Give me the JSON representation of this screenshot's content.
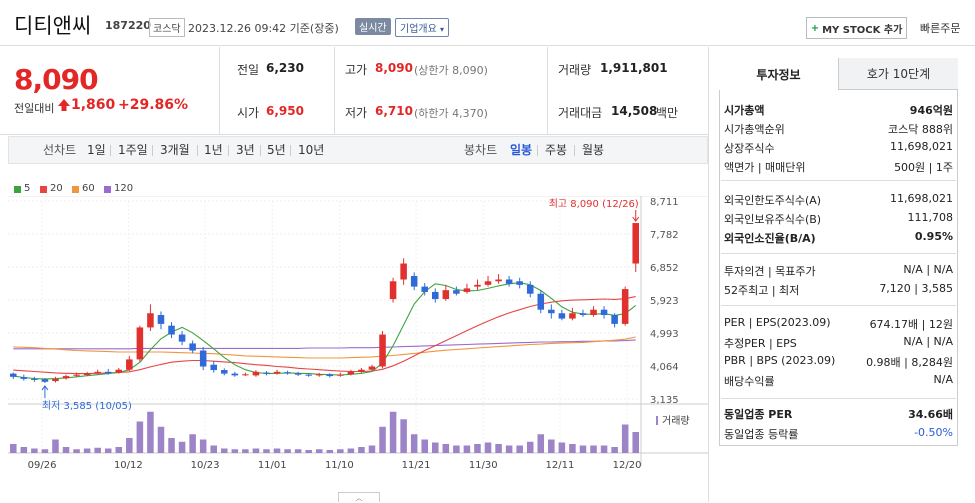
{
  "header": {
    "name": "디티앤씨",
    "code": "187220",
    "market": "코스닥",
    "datetime": "2023.12.26 09:42 기준(장중)",
    "realtime": "실시간",
    "company_overview": "기업개요",
    "mystock_label": "MY STOCK 추가",
    "quick_order": "빠른주문"
  },
  "price": {
    "current": "8,090",
    "change_label": "전일대비",
    "change": "1,860",
    "change_pct": "+29.86%",
    "prev_close_label": "전일",
    "prev_close": "6,230",
    "open_label": "시가",
    "open": "6,950",
    "high_label": "고가",
    "high": "8,090",
    "upper_limit": "(상한가 8,090)",
    "low_label": "저가",
    "low": "6,710",
    "lower_limit": "(하한가 4,370)",
    "volume_label": "거래량",
    "volume": "1,911,801",
    "amount_label": "거래대금",
    "amount": "14,508",
    "amount_unit": "백만"
  },
  "range": {
    "prefix": "선차트",
    "options": [
      "1일",
      "1주일",
      "3개월",
      "1년",
      "3년",
      "5년",
      "10년"
    ],
    "candle_prefix": "봉차트",
    "candle_options": [
      "일봉",
      "주봉",
      "월봉"
    ],
    "candle_active": "일봉"
  },
  "legend": [
    {
      "label": "5",
      "color": "#3ea33e"
    },
    {
      "label": "20",
      "color": "#e84545"
    },
    {
      "label": "60",
      "color": "#f0963c"
    },
    {
      "label": "120",
      "color": "#9b6bd0"
    }
  ],
  "chart_data": {
    "type": "candlestick",
    "x_labels": [
      "09/26",
      "10/12",
      "10/23",
      "11/01",
      "11/10",
      "11/21",
      "11/30",
      "12/11",
      "12/20"
    ],
    "y_ticks": [
      8711,
      7782,
      6852,
      5923,
      4993,
      4064,
      3135
    ],
    "y_tick_labels": [
      "8,711",
      "7,782",
      "6,852",
      "5,923",
      "4,993",
      "4,064",
      "3,135"
    ],
    "ylim": [
      3135,
      8711
    ],
    "high_annotation": "최고 8,090 (12/26)",
    "low_annotation": "최저 3,585 (10/05)",
    "volume_label": "거래량",
    "candles": [
      [
        3850,
        3760,
        3880,
        3700
      ],
      [
        3750,
        3700,
        3820,
        3650
      ],
      [
        3700,
        3680,
        3760,
        3620
      ],
      [
        3690,
        3620,
        3720,
        3585
      ],
      [
        3640,
        3700,
        3760,
        3600
      ],
      [
        3720,
        3780,
        3820,
        3680
      ],
      [
        3790,
        3820,
        3880,
        3750
      ],
      [
        3810,
        3860,
        3900,
        3780
      ],
      [
        3870,
        3900,
        3960,
        3830
      ],
      [
        3900,
        3860,
        3980,
        3820
      ],
      [
        3880,
        3960,
        4010,
        3850
      ],
      [
        3960,
        4250,
        4350,
        3920
      ],
      [
        4250,
        5150,
        5200,
        4180
      ],
      [
        5150,
        5550,
        5800,
        5050
      ],
      [
        5500,
        5250,
        5600,
        5100
      ],
      [
        5200,
        4950,
        5300,
        4850
      ],
      [
        4950,
        4750,
        5050,
        4650
      ],
      [
        4700,
        4500,
        4780,
        4420
      ],
      [
        4500,
        4050,
        4600,
        3950
      ],
      [
        4100,
        3950,
        4200,
        3880
      ],
      [
        3950,
        3850,
        4000,
        3800
      ],
      [
        3850,
        3800,
        3900,
        3760
      ],
      [
        3820,
        3830,
        3880,
        3780
      ],
      [
        3800,
        3900,
        3950,
        3760
      ],
      [
        3880,
        3850,
        3920,
        3800
      ],
      [
        3850,
        3900,
        3960,
        3820
      ],
      [
        3890,
        3860,
        3930,
        3820
      ],
      [
        3860,
        3820,
        3900,
        3780
      ],
      [
        3820,
        3800,
        3860,
        3760
      ],
      [
        3800,
        3830,
        3870,
        3760
      ],
      [
        3830,
        3780,
        3860,
        3740
      ],
      [
        3790,
        3820,
        3880,
        3760
      ],
      [
        3830,
        3900,
        3960,
        3800
      ],
      [
        3900,
        3960,
        4010,
        3860
      ],
      [
        3960,
        4050,
        4100,
        3920
      ],
      [
        4050,
        4950,
        5050,
        4000
      ],
      [
        5950,
        6450,
        6550,
        5850
      ],
      [
        6500,
        6950,
        7100,
        6350
      ],
      [
        6600,
        6300,
        6700,
        6200
      ],
      [
        6300,
        6150,
        6400,
        6050
      ],
      [
        6150,
        5950,
        6250,
        5850
      ],
      [
        5950,
        6200,
        6350,
        5900
      ],
      [
        6200,
        6100,
        6300,
        6050
      ],
      [
        6150,
        6250,
        6380,
        6100
      ],
      [
        6300,
        6350,
        6500,
        6200
      ],
      [
        6350,
        6450,
        6600,
        6300
      ],
      [
        6450,
        6500,
        6650,
        6380
      ],
      [
        6500,
        6380,
        6600,
        6300
      ],
      [
        6450,
        6350,
        6550,
        6250
      ],
      [
        6350,
        6100,
        6450,
        6000
      ],
      [
        6100,
        5650,
        6200,
        5550
      ],
      [
        5650,
        5550,
        5800,
        5400
      ],
      [
        5550,
        5400,
        5650,
        5350
      ],
      [
        5400,
        5550,
        5700,
        5350
      ],
      [
        5550,
        5500,
        5650,
        5450
      ],
      [
        5500,
        5650,
        5750,
        5450
      ],
      [
        5650,
        5500,
        5750,
        5400
      ],
      [
        5500,
        5250,
        5550,
        5150
      ],
      [
        5250,
        6230,
        6300,
        5200
      ],
      [
        6950,
        8090,
        8090,
        6710
      ]
    ],
    "ma5": [
      3780,
      3740,
      3710,
      3700,
      3710,
      3730,
      3760,
      3790,
      3820,
      3850,
      3880,
      3960,
      4170,
      4520,
      4830,
      5020,
      5150,
      5000,
      4780,
      4550,
      4300,
      4100,
      3960,
      3880,
      3850,
      3860,
      3870,
      3860,
      3850,
      3830,
      3820,
      3810,
      3830,
      3860,
      3910,
      4150,
      4640,
      5220,
      5810,
      6160,
      6380,
      6330,
      6220,
      6180,
      6190,
      6250,
      6320,
      6380,
      6410,
      6350,
      6190,
      5970,
      5730,
      5580,
      5530,
      5520,
      5540,
      5490,
      5540,
      5770
    ],
    "ma20": [
      3950,
      3930,
      3910,
      3890,
      3870,
      3860,
      3850,
      3850,
      3860,
      3870,
      3880,
      3900,
      3960,
      4040,
      4110,
      4170,
      4200,
      4220,
      4220,
      4200,
      4180,
      4160,
      4130,
      4100,
      4080,
      4050,
      4030,
      4000,
      3980,
      3960,
      3940,
      3920,
      3910,
      3910,
      3920,
      3970,
      4070,
      4200,
      4350,
      4500,
      4640,
      4780,
      4920,
      5060,
      5200,
      5330,
      5450,
      5560,
      5650,
      5740,
      5810,
      5860,
      5900,
      5920,
      5930,
      5940,
      5950,
      5940,
      5960,
      6020
    ],
    "ma60": [
      4600,
      4590,
      4580,
      4560,
      4540,
      4520,
      4500,
      4490,
      4480,
      4470,
      4460,
      4460,
      4460,
      4460,
      4460,
      4450,
      4440,
      4430,
      4420,
      4410,
      4390,
      4370,
      4350,
      4340,
      4330,
      4320,
      4310,
      4300,
      4290,
      4290,
      4290,
      4290,
      4300,
      4310,
      4320,
      4340,
      4360,
      4390,
      4420,
      4450,
      4480,
      4510,
      4530,
      4550,
      4570,
      4590,
      4610,
      4630,
      4650,
      4670,
      4680,
      4700,
      4710,
      4720,
      4730,
      4750,
      4770,
      4790,
      4820,
      4880
    ],
    "ma120": [
      4550,
      4550,
      4550,
      4550,
      4550,
      4550,
      4550,
      4550,
      4550,
      4550,
      4550,
      4550,
      4560,
      4560,
      4560,
      4560,
      4560,
      4560,
      4560,
      4560,
      4560,
      4560,
      4560,
      4560,
      4560,
      4560,
      4560,
      4560,
      4570,
      4570,
      4570,
      4570,
      4580,
      4580,
      4580,
      4590,
      4600,
      4610,
      4620,
      4630,
      4640,
      4650,
      4660,
      4670,
      4680,
      4690,
      4700,
      4710,
      4720,
      4730,
      4740,
      4740,
      4750,
      4750,
      4760,
      4760,
      4770,
      4770,
      4780,
      4800
    ],
    "volume": [
      0.12,
      0.08,
      0.06,
      0.05,
      0.18,
      0.08,
      0.05,
      0.06,
      0.07,
      0.06,
      0.08,
      0.2,
      0.42,
      0.55,
      0.35,
      0.2,
      0.15,
      0.25,
      0.18,
      0.1,
      0.06,
      0.05,
      0.05,
      0.06,
      0.05,
      0.06,
      0.05,
      0.05,
      0.04,
      0.05,
      0.04,
      0.05,
      0.06,
      0.08,
      0.1,
      0.35,
      0.55,
      0.45,
      0.25,
      0.18,
      0.14,
      0.12,
      0.1,
      0.1,
      0.12,
      0.14,
      0.12,
      0.1,
      0.1,
      0.15,
      0.25,
      0.18,
      0.14,
      0.12,
      0.1,
      0.1,
      0.1,
      0.08,
      0.38,
      0.28
    ]
  },
  "panel": {
    "tab_invest": "투자정보",
    "tab_quote": "호가 10단계",
    "rows_a": [
      {
        "label": "시가총액",
        "value": "946억원",
        "bold": true
      },
      {
        "label": "시가총액순위",
        "value": "코스닥 888위"
      },
      {
        "label": "상장주식수",
        "value": "11,698,021"
      },
      {
        "label": "액면가 | 매매단위",
        "value": "500원 | 1주"
      }
    ],
    "rows_b": [
      {
        "label": "외국인한도주식수(A)",
        "value": "11,698,021"
      },
      {
        "label": "외국인보유주식수(B)",
        "value": "111,708"
      },
      {
        "label": "외국인소진율(B/A)",
        "value": "0.95%",
        "bold": true
      }
    ],
    "rows_c": [
      {
        "label": "투자의견 | 목표주가",
        "value": "N/A | N/A"
      },
      {
        "label": "52주최고 | 최저",
        "value": "7,120 | 3,585"
      }
    ],
    "rows_d": [
      {
        "label": "PER | EPS(2023.09)",
        "value": "674.17배 | 12원"
      },
      {
        "label": "추정PER | EPS",
        "value": "N/A | N/A"
      },
      {
        "label": "PBR | BPS (2023.09)",
        "value": "0.98배 | 8,284원"
      },
      {
        "label": "배당수익률",
        "value": "N/A"
      }
    ],
    "rows_e": [
      {
        "label": "동일업종 PER",
        "value": "34.66배",
        "bold": true
      },
      {
        "label": "동일업종 등락률",
        "value": "-0.50%",
        "blue": true
      }
    ]
  }
}
